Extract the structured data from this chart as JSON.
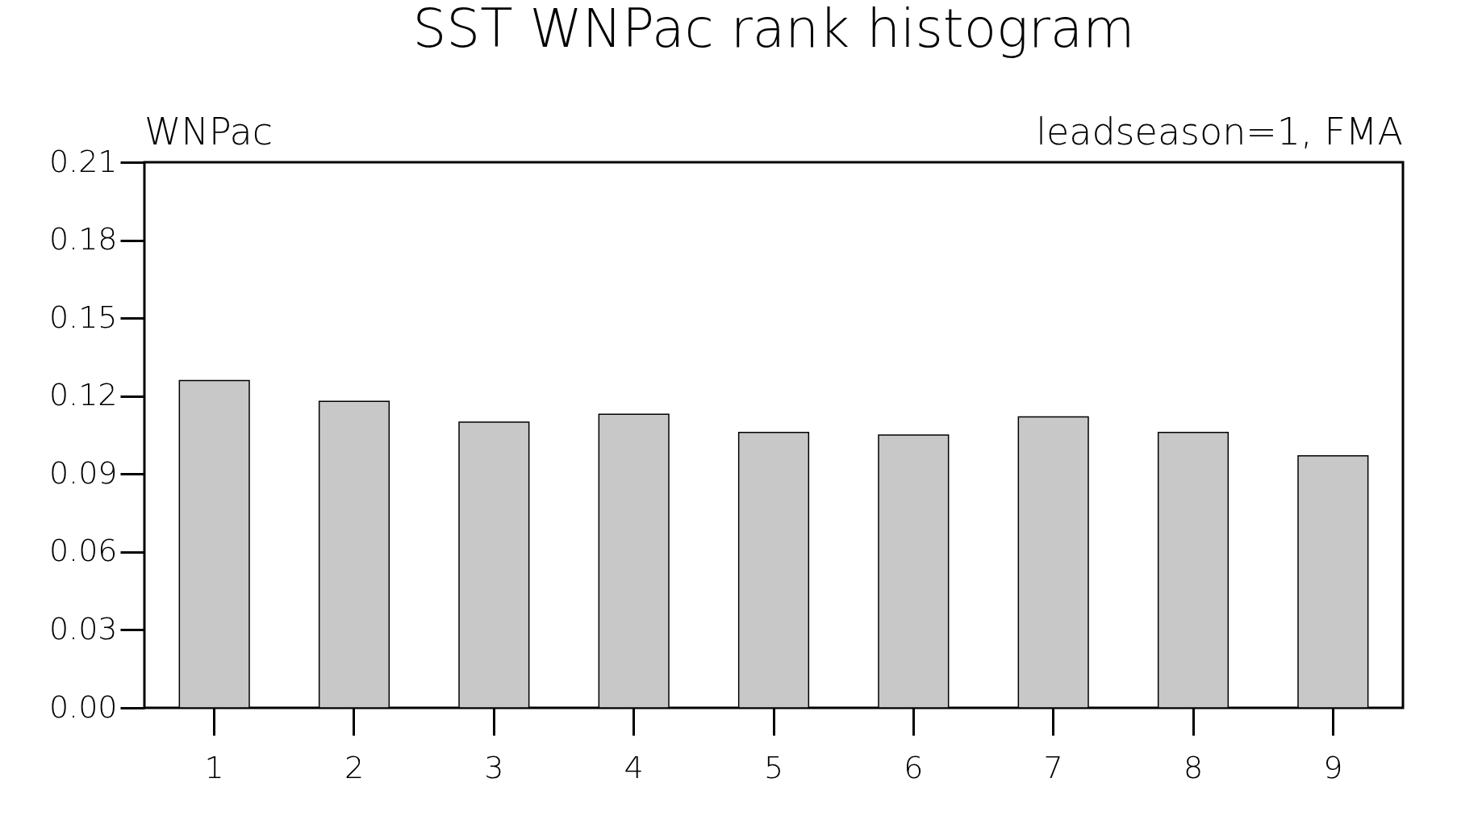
{
  "chart_data": {
    "type": "bar",
    "title": "SST WNPac rank histogram",
    "annotations": [
      "WNPac",
      "leadseason=1, FMA"
    ],
    "categories": [
      "1",
      "2",
      "3",
      "4",
      "5",
      "6",
      "7",
      "8",
      "9"
    ],
    "values": [
      0.126,
      0.118,
      0.11,
      0.113,
      0.106,
      0.105,
      0.112,
      0.106,
      0.097
    ],
    "color": "#c8c8c8",
    "ylim": [
      0,
      0.21
    ],
    "yticks": [
      {
        "value": 0,
        "label": "0.00"
      },
      {
        "value": 0.03,
        "label": "0.03"
      },
      {
        "value": 0.06,
        "label": "0.06"
      },
      {
        "value": 0.09,
        "label": "0.09"
      },
      {
        "value": 0.12,
        "label": "0.12"
      },
      {
        "value": 0.15,
        "label": "0.15"
      },
      {
        "value": 0.18,
        "label": "0.18"
      },
      {
        "value": 0.21,
        "label": "0.21"
      }
    ],
    "grid": false
  }
}
